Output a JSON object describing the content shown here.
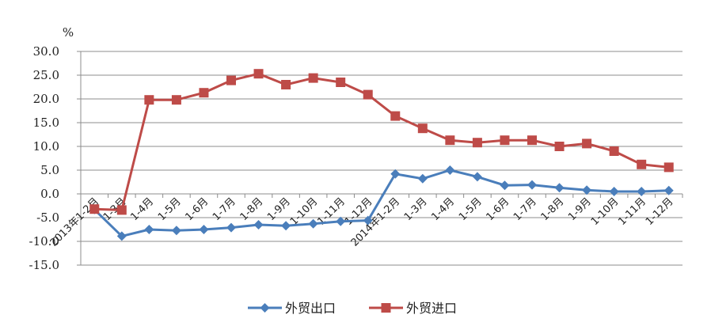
{
  "chart_data": {
    "type": "line",
    "ylabel": "%",
    "ylim": [
      -15,
      30
    ],
    "yticks": [
      "30.0",
      "25.0",
      "20.0",
      "15.0",
      "10.0",
      "5.0",
      "0.0",
      "-5.0",
      "-10.0",
      "-15.0"
    ],
    "categories": [
      "2013年1-2月",
      "1-3月",
      "1-4月",
      "1-5月",
      "1-6月",
      "1-7月",
      "1-8月",
      "1-9月",
      "1-10月",
      "1-11月",
      "1-12月",
      "2014年1-2月",
      "1-3月",
      "1-4月",
      "1-5月",
      "1-6月",
      "1-7月",
      "1-8月",
      "1-9月",
      "1-10月",
      "1-11月",
      "1-12月"
    ],
    "grid": true,
    "legend_position": "bottom",
    "series": [
      {
        "name": "外贸出口",
        "color": "#4a7ebb",
        "marker": "diamond",
        "values": [
          -3.3,
          -8.9,
          -7.5,
          -7.7,
          -7.5,
          -7.1,
          -6.5,
          -6.7,
          -6.3,
          -5.8,
          -5.6,
          4.2,
          3.2,
          5.0,
          3.6,
          1.8,
          1.9,
          1.3,
          0.8,
          0.5,
          0.5,
          0.7
        ]
      },
      {
        "name": "外贸进口",
        "color": "#be4b48",
        "marker": "square",
        "values": [
          -3.2,
          -3.4,
          19.8,
          19.8,
          21.3,
          23.9,
          25.3,
          23.0,
          24.4,
          23.5,
          20.9,
          16.4,
          13.8,
          11.3,
          10.8,
          11.3,
          11.3,
          10.0,
          10.6,
          9.0,
          6.2,
          5.6
        ]
      }
    ]
  }
}
